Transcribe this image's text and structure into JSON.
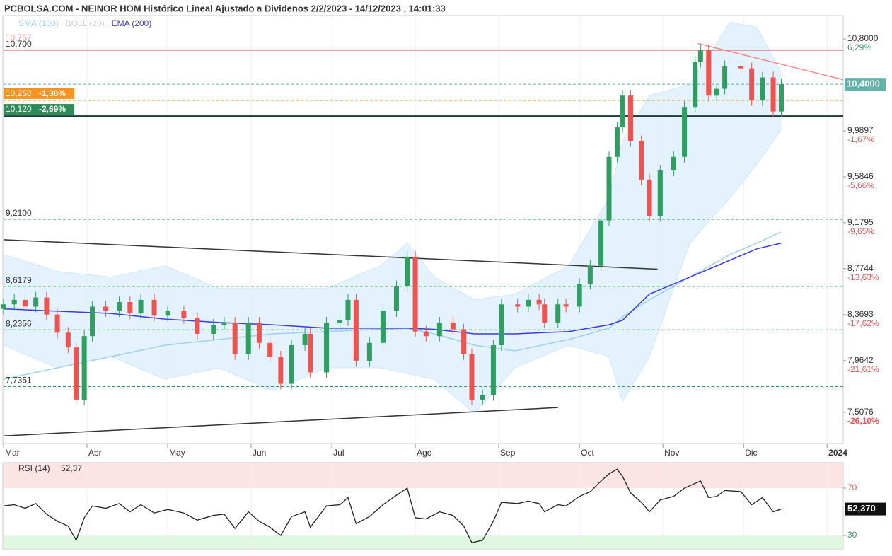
{
  "chart_data": {
    "type": "candlestick",
    "title": "PCBOLSA.COM - NEINOR HOM Histórico Lineal Ajustado a Dividenos 2/2/2023 - 14/12/2023 , 14:01:33",
    "legend": [
      {
        "name": "SMA (100)",
        "color": "#9fd0f0"
      },
      {
        "name": "BOLL (20)",
        "color": "#d0d0d0"
      },
      {
        "name": "EMA (200)",
        "color": "#3a3adf"
      }
    ],
    "xlim": [
      0,
      312
    ],
    "xticks": [
      {
        "value": 0,
        "label": "Mar"
      },
      {
        "value": 31,
        "label": "Abr"
      },
      {
        "value": 61,
        "label": "May"
      },
      {
        "value": 92,
        "label": "Jun"
      },
      {
        "value": 122,
        "label": "Jul"
      },
      {
        "value": 153,
        "label": "Ago"
      },
      {
        "value": 184,
        "label": "Sep"
      },
      {
        "value": 214,
        "label": "Oct"
      },
      {
        "value": 245,
        "label": "Nov"
      },
      {
        "value": 275,
        "label": "Dic"
      },
      {
        "value": 306,
        "label": "2024"
      }
    ],
    "ylim": [
      7.233,
      11.006
    ],
    "yticks": [
      {
        "value": 10.8,
        "label": "10,8000"
      },
      {
        "value": 9.9897,
        "label": "9,9897"
      },
      {
        "value": 9.5846,
        "label": "9,5846"
      },
      {
        "value": 9.1795,
        "label": "9,1795"
      },
      {
        "value": 8.7744,
        "label": "8,7744"
      },
      {
        "value": 8.3693,
        "label": "8,3693"
      },
      {
        "value": 7.9642,
        "label": "7,9642"
      },
      {
        "value": 7.5076,
        "label": "7,5076"
      }
    ],
    "ytick_changes": [
      "6,29%",
      "-1,67%",
      "-5,66%",
      "-9,65%",
      "-13,63%",
      "-17,62%",
      "-21,61%",
      "-26,10%"
    ],
    "up_color": "#2e9e61",
    "down_color": "#ef5350",
    "grid": true,
    "x": [
      0,
      4,
      8,
      12,
      16,
      20,
      24,
      27,
      30,
      33,
      38,
      43,
      47,
      51,
      56,
      61,
      67,
      72,
      78,
      82,
      86,
      91,
      95,
      99,
      103,
      107,
      112,
      114,
      120,
      125,
      128,
      131,
      136,
      141,
      146,
      150,
      153,
      157,
      162,
      167,
      171,
      174,
      178,
      182,
      185,
      191,
      195,
      199,
      201,
      206,
      209,
      214,
      218,
      222,
      225,
      228,
      230,
      233,
      237,
      240,
      244,
      249,
      253,
      257,
      259,
      262,
      265,
      268,
      274,
      278,
      282,
      286,
      289
    ],
    "candles": {
      "open": [
        8.42,
        8.46,
        8.5,
        8.44,
        8.52,
        8.37,
        8.21,
        8.08,
        7.62,
        8.18,
        8.44,
        8.4,
        8.48,
        8.38,
        8.5,
        8.36,
        8.4,
        8.34,
        8.2,
        8.28,
        8.3,
        8.02,
        8.3,
        8.12,
        8.0,
        7.76,
        8.1,
        8.2,
        7.86,
        8.3,
        8.32,
        8.5,
        7.96,
        8.12,
        8.4,
        8.62,
        8.88,
        8.22,
        8.18,
        8.3,
        8.24,
        8.02,
        7.62,
        7.66,
        8.1,
        8.46,
        8.44,
        8.5,
        8.46,
        8.3,
        8.46,
        8.44,
        8.64,
        8.8,
        9.2,
        9.76,
        10.02,
        10.3,
        9.9,
        9.56,
        9.24,
        9.64,
        9.76,
        10.2,
        10.6,
        10.7,
        10.3,
        10.36,
        10.56,
        10.54,
        10.26,
        10.46,
        10.16
      ],
      "high": [
        8.51,
        8.55,
        8.55,
        8.57,
        8.57,
        8.42,
        8.26,
        8.13,
        8.23,
        8.49,
        8.49,
        8.53,
        8.53,
        8.55,
        8.55,
        8.45,
        8.45,
        8.39,
        8.33,
        8.35,
        8.35,
        8.35,
        8.35,
        8.17,
        8.05,
        8.15,
        8.25,
        8.25,
        8.35,
        8.37,
        8.55,
        8.55,
        8.17,
        8.45,
        8.67,
        8.93,
        8.93,
        8.27,
        8.35,
        8.35,
        8.29,
        8.07,
        7.71,
        8.15,
        8.51,
        8.51,
        8.55,
        8.55,
        8.51,
        8.51,
        8.51,
        8.69,
        8.85,
        9.25,
        9.81,
        10.07,
        10.35,
        10.35,
        9.95,
        9.61,
        9.69,
        9.81,
        10.25,
        10.65,
        10.75,
        10.75,
        10.41,
        10.61,
        10.61,
        10.59,
        10.51,
        10.51,
        10.45
      ],
      "low": [
        8.37,
        8.41,
        8.39,
        8.39,
        8.32,
        8.16,
        8.03,
        7.57,
        7.57,
        8.13,
        8.35,
        8.35,
        8.33,
        8.33,
        8.31,
        8.31,
        8.29,
        8.15,
        8.15,
        8.23,
        7.97,
        7.97,
        8.07,
        7.95,
        7.71,
        7.71,
        8.05,
        7.81,
        7.81,
        8.25,
        8.27,
        7.91,
        7.91,
        8.07,
        8.35,
        8.57,
        8.17,
        8.13,
        8.13,
        8.19,
        7.97,
        7.57,
        7.57,
        7.61,
        8.05,
        8.39,
        8.39,
        8.41,
        8.25,
        8.25,
        8.39,
        8.39,
        8.59,
        8.75,
        9.15,
        9.71,
        9.97,
        9.85,
        9.51,
        9.19,
        9.19,
        9.59,
        9.71,
        10.15,
        10.55,
        10.25,
        10.25,
        10.31,
        10.49,
        10.21,
        10.21,
        10.11,
        10.11
      ],
      "close": [
        8.46,
        8.5,
        8.44,
        8.52,
        8.37,
        8.21,
        8.08,
        7.62,
        8.18,
        8.44,
        8.4,
        8.48,
        8.38,
        8.5,
        8.36,
        8.4,
        8.34,
        8.2,
        8.28,
        8.3,
        8.02,
        8.3,
        8.12,
        8.0,
        7.76,
        8.1,
        8.2,
        7.86,
        8.3,
        8.32,
        8.5,
        7.96,
        8.12,
        8.4,
        8.62,
        8.88,
        8.22,
        8.18,
        8.3,
        8.24,
        8.02,
        7.62,
        7.66,
        8.1,
        8.46,
        8.44,
        8.5,
        8.46,
        8.3,
        8.46,
        8.44,
        8.64,
        8.8,
        9.2,
        9.76,
        10.02,
        10.3,
        9.9,
        9.56,
        9.24,
        9.64,
        9.76,
        10.2,
        10.6,
        10.7,
        10.3,
        10.36,
        10.56,
        10.54,
        10.26,
        10.46,
        10.16,
        10.4
      ]
    },
    "indicator_x": [
      0,
      20,
      40,
      60,
      80,
      100,
      120,
      140,
      150,
      160,
      175,
      190,
      210,
      225,
      230,
      240,
      255,
      270,
      280,
      289
    ],
    "sma": [
      7.8,
      7.9,
      8.0,
      8.1,
      8.15,
      8.2,
      8.22,
      8.24,
      8.25,
      8.2,
      8.1,
      8.05,
      8.15,
      8.25,
      8.35,
      8.5,
      8.7,
      8.9,
      9.0,
      9.1
    ],
    "ema": [
      8.42,
      8.4,
      8.38,
      8.33,
      8.3,
      8.28,
      8.25,
      8.25,
      8.25,
      8.24,
      8.2,
      8.2,
      8.22,
      8.28,
      8.32,
      8.55,
      8.7,
      8.85,
      8.95,
      9.0
    ],
    "boll_upper": [
      8.9,
      8.75,
      8.7,
      8.8,
      8.6,
      8.6,
      8.6,
      8.8,
      9.0,
      8.7,
      8.5,
      8.55,
      8.8,
      9.4,
      9.9,
      10.3,
      10.4,
      10.95,
      10.9,
      10.5
    ],
    "boll_lower": [
      8.1,
      7.9,
      8.0,
      7.8,
      7.9,
      7.7,
      7.9,
      7.9,
      7.85,
      7.8,
      7.5,
      7.9,
      8.1,
      8.0,
      7.6,
      8.0,
      9.0,
      9.4,
      9.7,
      10.0
    ],
    "trendlines": [
      {
        "x": [
          0,
          243
        ],
        "y": [
          9.03,
          8.77
        ],
        "color": "#333333"
      },
      {
        "x": [
          0,
          206
        ],
        "y": [
          7.3,
          7.55
        ],
        "color": "#333333"
      },
      {
        "x": [
          258,
          312
        ],
        "y": [
          10.76,
          10.44
        ],
        "color": "#f28c8c"
      }
    ],
    "levels": [
      {
        "value": 10.757,
        "label": "10,757",
        "color": "#f4a0a0",
        "line": "none",
        "badge": false
      },
      {
        "value": 10.7,
        "label": "10,700",
        "color": "#e06666",
        "line": "solid",
        "badge": false
      },
      {
        "value": 10.258,
        "label": "10,258",
        "change": "-1,36%",
        "color": "#f7931e",
        "line": "dashed",
        "badge": true
      },
      {
        "value": 10.12,
        "label": "10,120",
        "change": "-2,69%",
        "color": "#2e8b57",
        "line": "thick",
        "badge": true
      },
      {
        "value": 9.21,
        "label": "9,2100",
        "color": "#2e9e61",
        "line": "dashed",
        "badge": false
      },
      {
        "value": 8.6179,
        "label": "8,6179",
        "color": "#2e9e61",
        "line": "dashed",
        "badge": false
      },
      {
        "value": 8.2356,
        "label": "8,2356",
        "color": "#2e9e61",
        "line": "dashed",
        "badge": false
      },
      {
        "value": 7.7351,
        "label": "7,7351",
        "color": "#2e9e61",
        "line": "dashed",
        "badge": false
      }
    ],
    "last": {
      "value": 10.4,
      "label": "10,4000",
      "color": "#5fb3a8"
    },
    "rsi": {
      "name": "RSI (14)",
      "last_label": "52,37",
      "badge_label": "52,370",
      "ylim": [
        19.3,
        90.9
      ],
      "yticks": [
        70,
        30
      ],
      "values": [
        55,
        56,
        53,
        57,
        48,
        42,
        38,
        26,
        45,
        55,
        53,
        57,
        50,
        56,
        49,
        52,
        49,
        43,
        47,
        48,
        36,
        50,
        42,
        37,
        30,
        46,
        50,
        37,
        55,
        56,
        62,
        40,
        46,
        56,
        64,
        70,
        45,
        44,
        50,
        47,
        38,
        24,
        26,
        42,
        58,
        57,
        59,
        57,
        50,
        56,
        55,
        63,
        67,
        76,
        82,
        86,
        80,
        66,
        58,
        50,
        60,
        63,
        70,
        74,
        76,
        62,
        63,
        68,
        67,
        56,
        62,
        50,
        52.37
      ]
    }
  }
}
